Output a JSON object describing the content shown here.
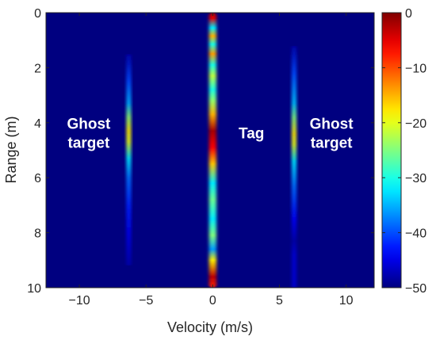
{
  "chart_data": {
    "type": "heatmap",
    "title": "",
    "xlabel": "Velocity (m/s)",
    "ylabel": "Range (m)",
    "xlim": [
      -12.5,
      12.1
    ],
    "ylim": [
      0,
      10
    ],
    "y_inverted": true,
    "x_ticks": [
      -10,
      -5,
      0,
      5,
      10
    ],
    "x_tick_labels": [
      "−10",
      "−5",
      "0",
      "5",
      "10"
    ],
    "y_ticks": [
      0,
      2,
      4,
      6,
      8,
      10
    ],
    "y_tick_labels": [
      "0",
      "2",
      "4",
      "6",
      "8",
      "10"
    ],
    "colormap": "jet",
    "clim": [
      -50,
      0
    ],
    "colorbar_ticks": [
      0,
      -10,
      -20,
      -30,
      -40,
      -50
    ],
    "colorbar_tick_labels": [
      "0",
      "−10",
      "−20",
      "−30",
      "−40",
      "−50"
    ],
    "background_level_db": -50,
    "bands": [
      {
        "name": "ghost-left",
        "velocity": -6.3,
        "width_ms": 0.33,
        "profile": [
          {
            "range": 1.5,
            "db": -48
          },
          {
            "range": 2.5,
            "db": -40
          },
          {
            "range": 3.3,
            "db": -35
          },
          {
            "range": 3.8,
            "db": -24
          },
          {
            "range": 4.3,
            "db": -18
          },
          {
            "range": 4.7,
            "db": -20
          },
          {
            "range": 5.3,
            "db": -32
          },
          {
            "range": 6.0,
            "db": -38
          },
          {
            "range": 7.0,
            "db": -42
          },
          {
            "range": 8.0,
            "db": -45
          },
          {
            "range": 9.2,
            "db": -48
          }
        ]
      },
      {
        "name": "tag",
        "velocity": 0.0,
        "width_ms": 0.55,
        "profile": [
          {
            "range": 0.0,
            "db": -2
          },
          {
            "range": 0.2,
            "db": -5
          },
          {
            "range": 0.55,
            "db": -32
          },
          {
            "range": 0.85,
            "db": -15
          },
          {
            "range": 1.15,
            "db": -30
          },
          {
            "range": 1.5,
            "db": -14
          },
          {
            "range": 1.9,
            "db": -30
          },
          {
            "range": 2.3,
            "db": -22
          },
          {
            "range": 2.8,
            "db": -30
          },
          {
            "range": 3.2,
            "db": -24
          },
          {
            "range": 3.7,
            "db": -15
          },
          {
            "range": 4.3,
            "db": -2
          },
          {
            "range": 4.9,
            "db": -6
          },
          {
            "range": 5.5,
            "db": -16
          },
          {
            "range": 6.2,
            "db": -32
          },
          {
            "range": 6.8,
            "db": -26
          },
          {
            "range": 7.5,
            "db": -32
          },
          {
            "range": 8.1,
            "db": -25
          },
          {
            "range": 8.6,
            "db": -36
          },
          {
            "range": 9.0,
            "db": -18
          },
          {
            "range": 9.6,
            "db": -3
          },
          {
            "range": 10.0,
            "db": -8
          }
        ]
      },
      {
        "name": "ghost-right",
        "velocity": 6.1,
        "width_ms": 0.33,
        "profile": [
          {
            "range": 1.2,
            "db": -48
          },
          {
            "range": 2.2,
            "db": -40
          },
          {
            "range": 3.3,
            "db": -34
          },
          {
            "range": 3.8,
            "db": -25
          },
          {
            "range": 4.4,
            "db": -18
          },
          {
            "range": 4.8,
            "db": -20
          },
          {
            "range": 5.4,
            "db": -32
          },
          {
            "range": 6.3,
            "db": -38
          },
          {
            "range": 7.5,
            "db": -44
          },
          {
            "range": 8.3,
            "db": -48
          },
          {
            "range": 8.8,
            "db": -46
          },
          {
            "range": 10.0,
            "db": -46
          }
        ]
      }
    ],
    "annotations": [
      {
        "text": [
          "Ghost",
          "target"
        ],
        "velocity": -9.3,
        "range": 4.4,
        "color": "#ffffff"
      },
      {
        "text": [
          "Tag"
        ],
        "velocity": 2.9,
        "range": 4.4,
        "color": "#ffffff"
      },
      {
        "text": [
          "Ghost",
          "target"
        ],
        "velocity": 8.9,
        "range": 4.4,
        "color": "#ffffff"
      }
    ]
  }
}
